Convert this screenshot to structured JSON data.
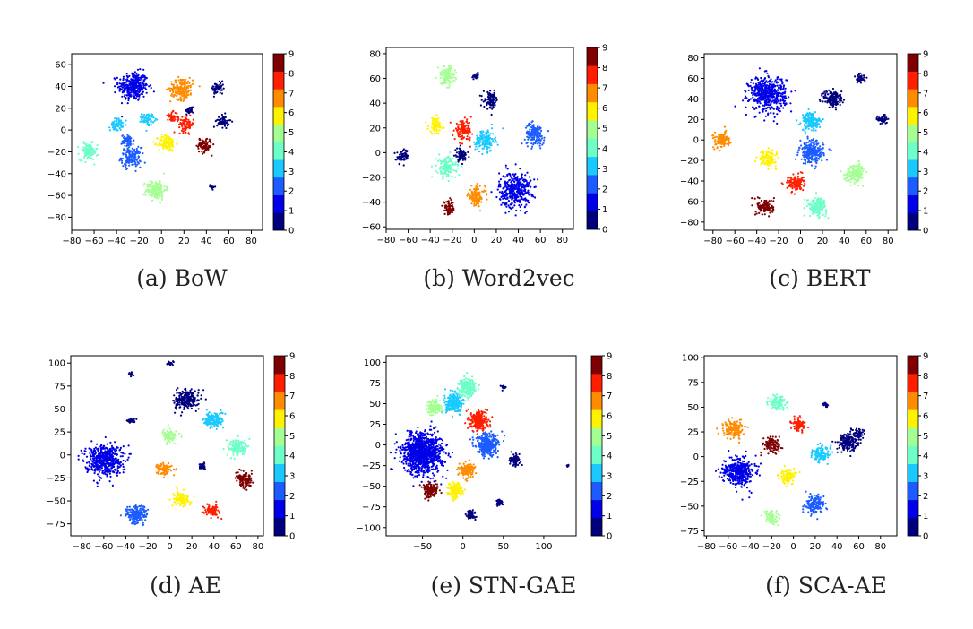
{
  "figure": {
    "colorbar_ticks": [
      "0",
      "1",
      "2",
      "3",
      "4",
      "5",
      "6",
      "7",
      "8",
      "9"
    ],
    "colormap": [
      "#00007f",
      "#0000e8",
      "#1c5cff",
      "#1acaff",
      "#6dffc7",
      "#a4ff93",
      "#fff200",
      "#ff8c00",
      "#ff1e00",
      "#7f0000"
    ]
  },
  "chart_data": [
    {
      "type": "scatter",
      "caption": "(a) BoW",
      "xlim": [
        -80,
        90
      ],
      "ylim": [
        -92,
        70
      ],
      "xticks": [
        -80,
        -60,
        -40,
        -20,
        0,
        20,
        40,
        60,
        80
      ],
      "yticks": [
        -80,
        -60,
        -40,
        -20,
        0,
        20,
        40,
        60
      ],
      "clusters": [
        {
          "class": 1,
          "x": -25,
          "y": 40,
          "r": 12
        },
        {
          "class": 2,
          "x": -27,
          "y": -25,
          "r": 8
        },
        {
          "class": 2,
          "x": -30,
          "y": -10,
          "r": 5
        },
        {
          "class": 3,
          "x": -40,
          "y": 5,
          "r": 5
        },
        {
          "class": 3,
          "x": -12,
          "y": 10,
          "r": 5
        },
        {
          "class": 4,
          "x": -65,
          "y": -20,
          "r": 7
        },
        {
          "class": 5,
          "x": -5,
          "y": -55,
          "r": 8
        },
        {
          "class": 6,
          "x": 5,
          "y": -12,
          "r": 7
        },
        {
          "class": 7,
          "x": 18,
          "y": 38,
          "r": 9
        },
        {
          "class": 8,
          "x": 22,
          "y": 5,
          "r": 6
        },
        {
          "class": 8,
          "x": 10,
          "y": 12,
          "r": 4
        },
        {
          "class": 9,
          "x": 38,
          "y": -14,
          "r": 6
        },
        {
          "class": 0,
          "x": 55,
          "y": 8,
          "r": 5
        },
        {
          "class": 0,
          "x": 50,
          "y": 38,
          "r": 5
        },
        {
          "class": 0,
          "x": 25,
          "y": 18,
          "r": 3
        },
        {
          "class": 0,
          "x": 45,
          "y": -52,
          "r": 2
        }
      ]
    },
    {
      "type": "scatter",
      "caption": "(b) Word2vec",
      "xlim": [
        -80,
        90
      ],
      "ylim": [
        -62,
        85
      ],
      "xticks": [
        -80,
        -60,
        -40,
        -20,
        0,
        20,
        40,
        60,
        80
      ],
      "yticks": [
        -60,
        -40,
        -20,
        0,
        20,
        40,
        60,
        80
      ],
      "clusters": [
        {
          "class": 1,
          "x": 37,
          "y": -30,
          "r": 13
        },
        {
          "class": 2,
          "x": 55,
          "y": 15,
          "r": 8
        },
        {
          "class": 3,
          "x": 10,
          "y": 10,
          "r": 8
        },
        {
          "class": 4,
          "x": -25,
          "y": -12,
          "r": 8
        },
        {
          "class": 5,
          "x": -25,
          "y": 62,
          "r": 7
        },
        {
          "class": 6,
          "x": -35,
          "y": 22,
          "r": 6
        },
        {
          "class": 7,
          "x": 2,
          "y": -35,
          "r": 7
        },
        {
          "class": 8,
          "x": -10,
          "y": 18,
          "r": 7
        },
        {
          "class": 9,
          "x": -23,
          "y": -45,
          "r": 5
        },
        {
          "class": 0,
          "x": -65,
          "y": -3,
          "r": 5
        },
        {
          "class": 0,
          "x": 15,
          "y": 42,
          "r": 6
        },
        {
          "class": 0,
          "x": -12,
          "y": -2,
          "r": 5
        },
        {
          "class": 0,
          "x": 2,
          "y": 62,
          "r": 2
        }
      ]
    },
    {
      "type": "scatter",
      "caption": "(c) BERT",
      "xlim": [
        -88,
        88
      ],
      "ylim": [
        -88,
        84
      ],
      "xticks": [
        -80,
        -60,
        -40,
        -20,
        0,
        20,
        40,
        60,
        80
      ],
      "yticks": [
        -80,
        -60,
        -40,
        -20,
        0,
        20,
        40,
        60,
        80
      ],
      "clusters": [
        {
          "class": 1,
          "x": -30,
          "y": 45,
          "r": 15
        },
        {
          "class": 2,
          "x": 10,
          "y": -12,
          "r": 10
        },
        {
          "class": 3,
          "x": 10,
          "y": 18,
          "r": 8
        },
        {
          "class": 4,
          "x": 15,
          "y": -65,
          "r": 8
        },
        {
          "class": 5,
          "x": 50,
          "y": -32,
          "r": 8
        },
        {
          "class": 6,
          "x": -30,
          "y": -18,
          "r": 7
        },
        {
          "class": 7,
          "x": -72,
          "y": 0,
          "r": 7
        },
        {
          "class": 8,
          "x": -5,
          "y": -42,
          "r": 7
        },
        {
          "class": 9,
          "x": -32,
          "y": -65,
          "r": 7
        },
        {
          "class": 0,
          "x": 30,
          "y": 40,
          "r": 8
        },
        {
          "class": 0,
          "x": 55,
          "y": 60,
          "r": 4
        },
        {
          "class": 0,
          "x": 75,
          "y": 20,
          "r": 4
        }
      ]
    },
    {
      "type": "scatter",
      "caption": "(d) AE",
      "xlim": [
        -90,
        85
      ],
      "ylim": [
        -88,
        108
      ],
      "xticks": [
        -80,
        -60,
        -40,
        -20,
        0,
        20,
        40,
        60,
        80
      ],
      "yticks": [
        -75,
        -50,
        -25,
        0,
        25,
        50,
        75,
        100
      ],
      "clusters": [
        {
          "class": 1,
          "x": -60,
          "y": -5,
          "r": 15
        },
        {
          "class": 2,
          "x": -30,
          "y": -65,
          "r": 9
        },
        {
          "class": 3,
          "x": 40,
          "y": 38,
          "r": 8
        },
        {
          "class": 4,
          "x": 62,
          "y": 8,
          "r": 8
        },
        {
          "class": 5,
          "x": 0,
          "y": 20,
          "r": 6
        },
        {
          "class": 6,
          "x": 10,
          "y": -48,
          "r": 7
        },
        {
          "class": 7,
          "x": -5,
          "y": -15,
          "r": 6
        },
        {
          "class": 8,
          "x": 38,
          "y": -60,
          "r": 6
        },
        {
          "class": 9,
          "x": 68,
          "y": -28,
          "r": 7
        },
        {
          "class": 0,
          "x": 15,
          "y": 60,
          "r": 10
        },
        {
          "class": 0,
          "x": -35,
          "y": 88,
          "r": 2
        },
        {
          "class": 0,
          "x": 0,
          "y": 100,
          "r": 2
        },
        {
          "class": 0,
          "x": 30,
          "y": -12,
          "r": 3
        },
        {
          "class": 0,
          "x": -35,
          "y": 38,
          "r": 3
        }
      ]
    },
    {
      "type": "scatter",
      "caption": "(e) STN-GAE",
      "xlim": [
        -95,
        140
      ],
      "ylim": [
        -110,
        108
      ],
      "xticks": [
        -50,
        0,
        50,
        100
      ],
      "yticks": [
        -100,
        -75,
        -50,
        -25,
        0,
        25,
        50,
        75,
        100
      ],
      "clusters": [
        {
          "class": 1,
          "x": -50,
          "y": -10,
          "r": 22
        },
        {
          "class": 2,
          "x": 30,
          "y": 0,
          "r": 12
        },
        {
          "class": 3,
          "x": -10,
          "y": 50,
          "r": 10
        },
        {
          "class": 4,
          "x": 5,
          "y": 70,
          "r": 10
        },
        {
          "class": 5,
          "x": -35,
          "y": 45,
          "r": 8
        },
        {
          "class": 6,
          "x": -10,
          "y": -55,
          "r": 8
        },
        {
          "class": 7,
          "x": 5,
          "y": -30,
          "r": 8
        },
        {
          "class": 8,
          "x": 20,
          "y": 30,
          "r": 10
        },
        {
          "class": 9,
          "x": -40,
          "y": -55,
          "r": 8
        },
        {
          "class": 0,
          "x": 65,
          "y": -18,
          "r": 6
        },
        {
          "class": 0,
          "x": 10,
          "y": -85,
          "r": 5
        },
        {
          "class": 0,
          "x": 45,
          "y": -70,
          "r": 3
        },
        {
          "class": 0,
          "x": 50,
          "y": 70,
          "r": 2
        },
        {
          "class": 0,
          "x": 130,
          "y": -25,
          "r": 1
        }
      ]
    },
    {
      "type": "scatter",
      "caption": "(f) SCA-AE",
      "xlim": [
        -82,
        95
      ],
      "ylim": [
        -80,
        102
      ],
      "xticks": [
        -80,
        -60,
        -40,
        -20,
        0,
        20,
        40,
        60,
        80
      ],
      "yticks": [
        -75,
        -50,
        -25,
        0,
        25,
        50,
        75,
        100
      ],
      "clusters": [
        {
          "class": 1,
          "x": -50,
          "y": -15,
          "r": 13
        },
        {
          "class": 2,
          "x": 20,
          "y": -48,
          "r": 8
        },
        {
          "class": 3,
          "x": 25,
          "y": 2,
          "r": 7
        },
        {
          "class": 4,
          "x": -15,
          "y": 55,
          "r": 7
        },
        {
          "class": 5,
          "x": -20,
          "y": -62,
          "r": 6
        },
        {
          "class": 6,
          "x": -5,
          "y": -20,
          "r": 7
        },
        {
          "class": 7,
          "x": -55,
          "y": 28,
          "r": 8
        },
        {
          "class": 8,
          "x": 5,
          "y": 32,
          "r": 6
        },
        {
          "class": 9,
          "x": -20,
          "y": 12,
          "r": 7
        },
        {
          "class": 0,
          "x": 50,
          "y": 15,
          "r": 9
        },
        {
          "class": 0,
          "x": 60,
          "y": 24,
          "r": 4
        },
        {
          "class": 0,
          "x": 30,
          "y": 52,
          "r": 2
        }
      ]
    }
  ]
}
